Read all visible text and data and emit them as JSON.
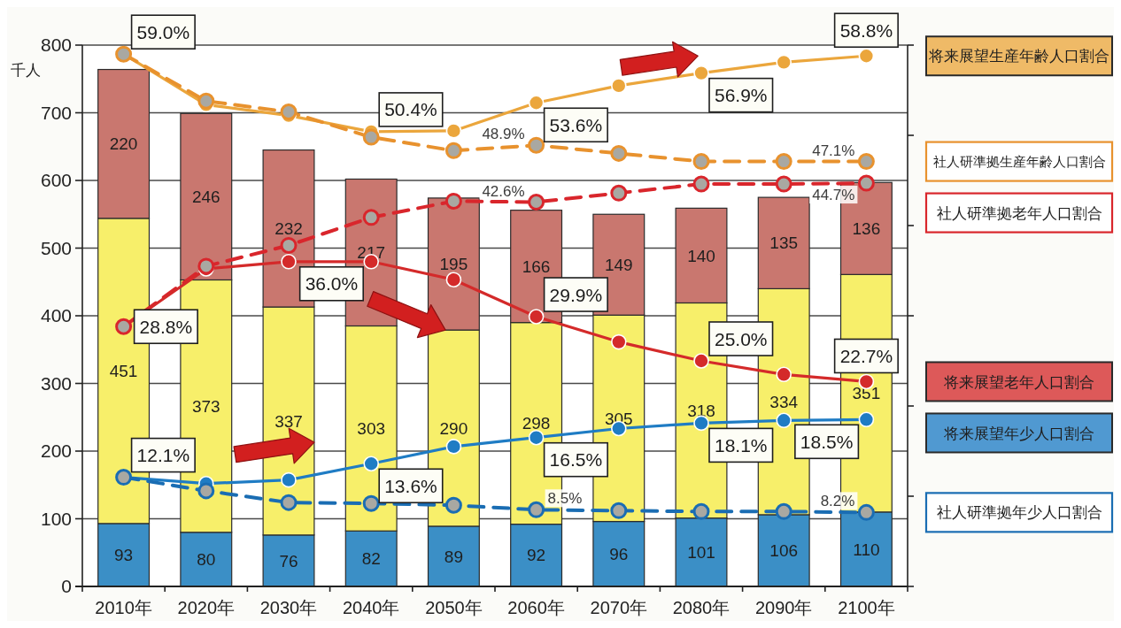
{
  "chart_data": {
    "type": "bar",
    "stacked": true,
    "ylabel": "千人",
    "categories": [
      "2010年",
      "2020年",
      "2030年",
      "2040年",
      "2050年",
      "2060年",
      "2070年",
      "2080年",
      "2090年",
      "2100年"
    ],
    "ylim": [
      0,
      800
    ],
    "yticks": [
      0,
      100,
      200,
      300,
      400,
      500,
      600,
      700,
      800
    ],
    "y2lim": [
      0,
      60
    ],
    "y2ticks": [
      {
        "value": 0,
        "label": null
      },
      {
        "value": 10,
        "label": null
      },
      {
        "value": 20,
        "label": null
      },
      {
        "value": 30,
        "label": null
      },
      {
        "value": 40,
        "label": null
      },
      {
        "value": 50,
        "label": null
      },
      {
        "value": 60,
        "label": null
      }
    ],
    "grid": "y",
    "legend": "right",
    "marker": "circle",
    "series": [
      {
        "color": "#3b8fc6",
        "values": [
          93,
          80,
          76,
          82,
          89,
          92,
          96,
          101,
          106,
          110
        ],
        "value_labels": [
          "93",
          "80",
          "76",
          "82",
          "89",
          "92",
          "96",
          "101",
          "106",
          "110"
        ]
      },
      {
        "color": "#f7ef6a",
        "values": [
          451,
          373,
          337,
          303,
          290,
          298,
          305,
          318,
          334,
          351
        ],
        "value_labels": [
          "451",
          "373",
          "337",
          "303",
          "290",
          "298",
          "305",
          "318",
          "334",
          "351"
        ]
      },
      {
        "color": "#c9776f",
        "values": [
          220,
          246,
          232,
          217,
          195,
          166,
          149,
          140,
          135,
          136
        ],
        "value_labels": [
          "220",
          "246",
          "232",
          "217",
          "195",
          "166",
          "149",
          "140",
          "135",
          "136"
        ]
      },
      {
        "type": "line",
        "axis": "y2",
        "name": "将来展望生産年齢人口割合",
        "color": "#eba63c",
        "line_style": "solid",
        "values": [
          59.0,
          53.4,
          52.2,
          50.4,
          50.5,
          53.6,
          55.5,
          56.9,
          58.1,
          58.8
        ],
        "value_labels": [
          "59.0%",
          null,
          null,
          "50.4%",
          null,
          "53.6%",
          null,
          "56.9%",
          null,
          "58.8%"
        ]
      },
      {
        "type": "line",
        "axis": "y2",
        "name": "社人研準拠生産年齢人口割合",
        "color": "#e8922e",
        "line_style": "dashed",
        "values": [
          59.0,
          53.8,
          52.6,
          49.8,
          48.3,
          48.9,
          48.0,
          47.1,
          47.1,
          47.1
        ],
        "value_labels": [
          null,
          null,
          null,
          null,
          null,
          "48.9%",
          null,
          null,
          null,
          "47.1%"
        ]
      },
      {
        "type": "line",
        "axis": "y2",
        "name": "社人研準拠老年人口割合",
        "color": "#d9262c",
        "line_style": "dashed",
        "values": [
          28.8,
          35.5,
          37.8,
          40.9,
          42.7,
          42.6,
          43.6,
          44.6,
          44.6,
          44.7
        ],
        "value_labels": [
          null,
          null,
          null,
          null,
          null,
          "42.6%",
          null,
          null,
          null,
          "44.7%"
        ]
      },
      {
        "type": "line",
        "axis": "y2",
        "name": "将来展望老年人口割合",
        "color": "#d42a2a",
        "line_style": "solid",
        "values": [
          28.8,
          35.2,
          36.0,
          36.0,
          34.0,
          29.9,
          27.1,
          25.0,
          23.5,
          22.7
        ],
        "value_labels": [
          "28.8%",
          null,
          null,
          "36.0%",
          null,
          "29.9%",
          null,
          "25.0%",
          null,
          "22.7%"
        ]
      },
      {
        "type": "line",
        "axis": "y2",
        "name": "将来展望年少人口割合",
        "color": "#1f7cc4",
        "line_style": "solid",
        "values": [
          12.1,
          11.4,
          11.8,
          13.6,
          15.5,
          16.5,
          17.5,
          18.1,
          18.4,
          18.5
        ],
        "value_labels": [
          "12.1%",
          null,
          null,
          "13.6%",
          null,
          "16.5%",
          null,
          "18.1%",
          null,
          "18.5%"
        ]
      },
      {
        "type": "line",
        "axis": "y2",
        "name": "社人研準拠年少人口割合",
        "color": "#1a6db3",
        "line_style": "dashed",
        "values": [
          12.1,
          10.6,
          9.3,
          9.2,
          9.0,
          8.5,
          8.4,
          8.3,
          8.3,
          8.2
        ],
        "value_labels": [
          null,
          null,
          null,
          null,
          null,
          "8.5%",
          null,
          null,
          null,
          "8.2%"
        ]
      }
    ]
  }
}
